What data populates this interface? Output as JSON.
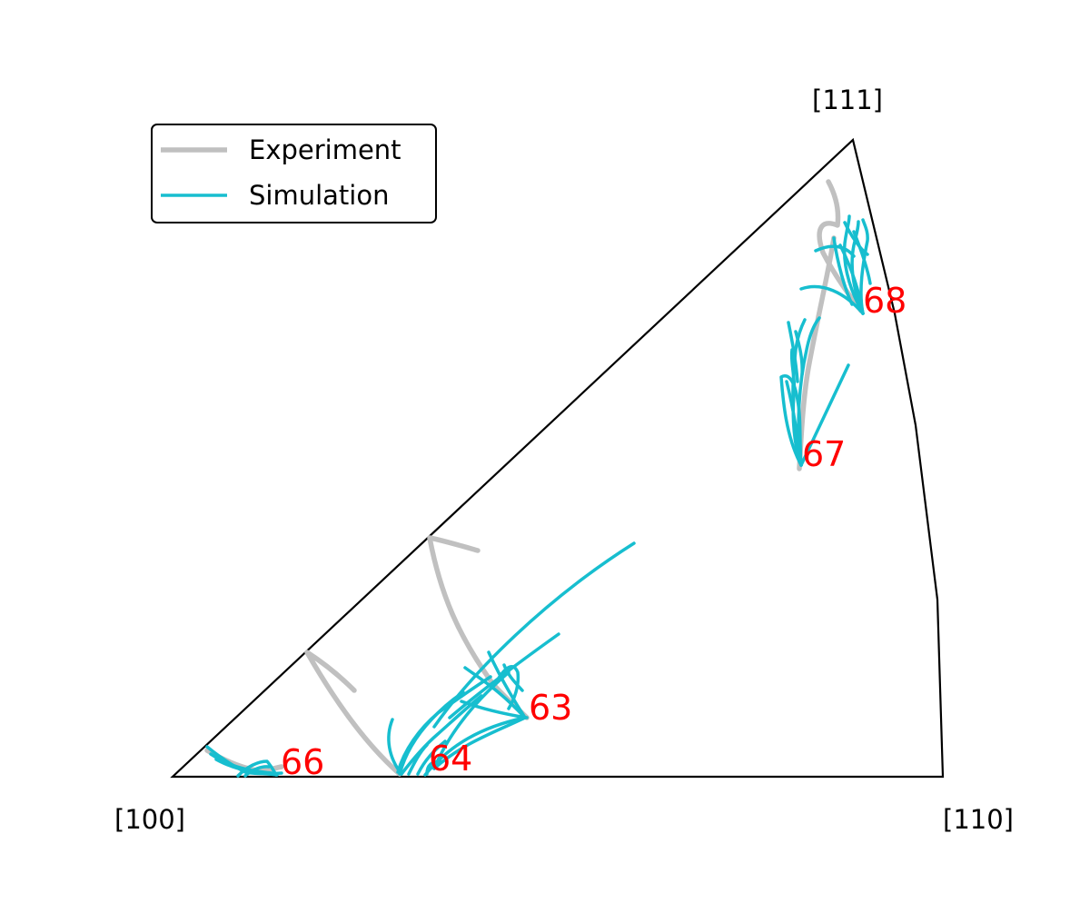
{
  "chart_data": {
    "type": "line",
    "title": "",
    "corners": {
      "c100": "[100]",
      "c110": "[110]",
      "c111": "[111]"
    },
    "legend": {
      "placement": "top-left",
      "experiment": "Experiment",
      "simulation": "Simulation"
    },
    "colors": {
      "experiment": "#c0c0c0",
      "simulation": "#17becf",
      "grain_label": "#ff0000",
      "frame": "#000000"
    },
    "grain_labels": [
      "63",
      "64",
      "66",
      "67",
      "68"
    ]
  }
}
